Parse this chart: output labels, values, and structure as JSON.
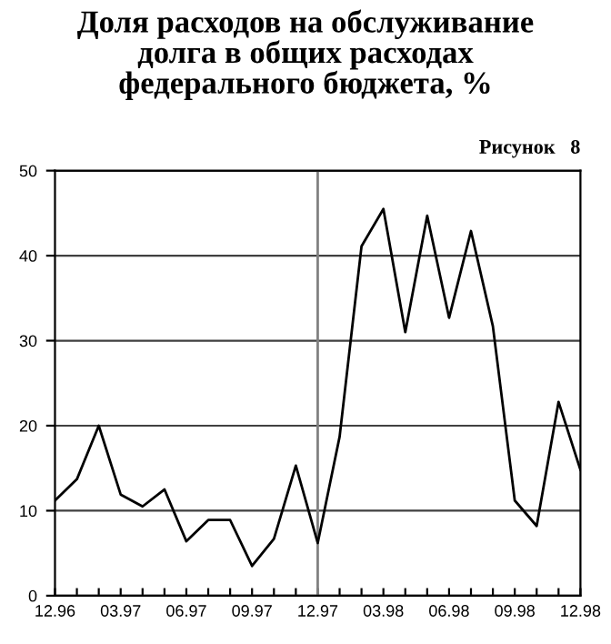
{
  "chart_data": {
    "type": "line",
    "title": "Доля расходов на обслуживание\nдолга в общих расходах\nфедерального бюджета, %",
    "annotations": [
      "Рисунок   8"
    ],
    "categories": [
      "12.96",
      null,
      null,
      "03.97",
      null,
      null,
      "06.97",
      null,
      null,
      "09.97",
      null,
      null,
      "12.97",
      null,
      null,
      "03.98",
      null,
      null,
      "06.98",
      null,
      null,
      "09.98",
      null,
      null,
      "12.98"
    ],
    "series": [
      {
        "color": "#000000",
        "values": [
          11.2,
          13.7,
          20,
          11.9,
          10.5,
          12.5,
          6.4,
          8.9,
          8.9,
          3.5,
          6.7,
          15.3,
          6.2,
          18.7,
          41.1,
          45.5,
          31,
          44.7,
          32.7,
          42.9,
          31.7,
          11.2,
          8.2,
          22.8,
          14.8
        ]
      }
    ],
    "ylim": [
      0,
      50
    ],
    "yticks": [
      0,
      10,
      20,
      30,
      40,
      50
    ],
    "grid": "y",
    "legend": false,
    "marker": "none",
    "line_style": "solid",
    "ref_lines": [
      {
        "axis": "x",
        "value": "12.97",
        "color": "#808080"
      }
    ]
  }
}
